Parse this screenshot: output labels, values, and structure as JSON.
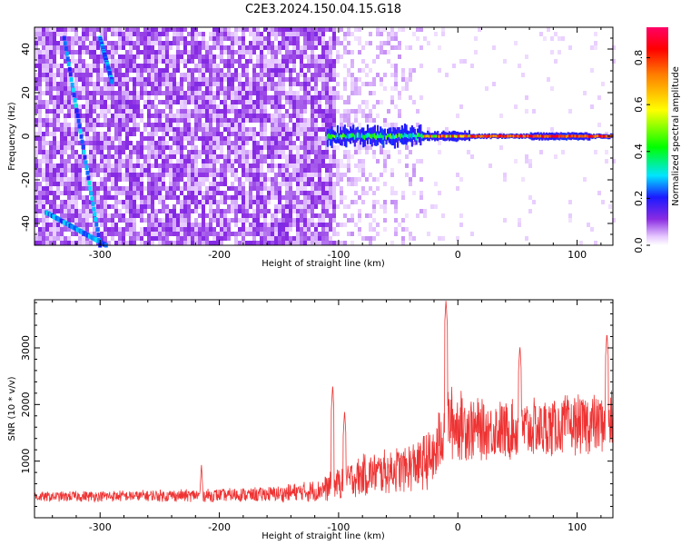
{
  "title": "C2E3.2024.150.04.15.G18",
  "colorbar": {
    "label": "Normalized spectral amplitude",
    "ticks": [
      0.0,
      0.2,
      0.4,
      0.6,
      0.8
    ],
    "tick_labels": [
      "0.0",
      "0.2",
      "0.4",
      "0.6",
      "0.8"
    ],
    "range": [
      0,
      0.93
    ]
  },
  "chart_data": [
    {
      "type": "heatmap",
      "title": "C2E3.2024.150.04.15.G18",
      "xlabel": "Height of straight line (km)",
      "ylabel": "Frequency (Hz)",
      "xlim": [
        -355,
        130
      ],
      "ylim": [
        -50,
        50
      ],
      "x_ticks": [
        -300,
        -200,
        -100,
        0,
        100
      ],
      "x_tick_labels": [
        "-300",
        "-200",
        "-100",
        "0",
        "100"
      ],
      "y_ticks": [
        -40,
        -20,
        0,
        20,
        40
      ],
      "y_tick_labels": [
        "-40",
        "-20",
        "0",
        "20",
        "40"
      ],
      "colormap": "rainbow (white→purple→blue→cyan→green→yellow→red)",
      "features": {
        "noise_region_x": [
          -355,
          -105
        ],
        "noise_amplitude": 0.1,
        "fading_noise_x": [
          -105,
          -30
        ],
        "dc_line_start_x": -110,
        "dc_line_y": 0,
        "dc_line_amplitude_range": [
          0.3,
          0.93
        ],
        "oblique_streaks": [
          {
            "x_start": -345,
            "y_start": -35,
            "x_end": -295,
            "y_end": -50
          },
          {
            "x_start": -330,
            "y_start": 45,
            "x_end": -300,
            "y_end": -50
          },
          {
            "x_start": -300,
            "y_start": 45,
            "x_end": -290,
            "y_end": 25
          }
        ]
      }
    },
    {
      "type": "line",
      "xlabel": "Height of straight line (km)",
      "ylabel": "SNR (10 * v/v)",
      "xlim": [
        -355,
        130
      ],
      "ylim": [
        0,
        3850
      ],
      "x_ticks": [
        -300,
        -200,
        -100,
        0,
        100
      ],
      "x_tick_labels": [
        "-300",
        "-200",
        "-100",
        "0",
        "100"
      ],
      "y_ticks": [
        1000,
        2000,
        3000
      ],
      "y_tick_labels": [
        "1000",
        "2000",
        "3000"
      ],
      "series": [
        {
          "color": "#ee3333",
          "envelope_x": [
            -355,
            -300,
            -250,
            -200,
            -150,
            -120,
            -100,
            -80,
            -60,
            -40,
            -20,
            -10,
            0,
            20,
            50,
            80,
            100,
            130
          ],
          "envelope_mean": [
            370,
            380,
            390,
            395,
            420,
            470,
            600,
            750,
            820,
            900,
            1050,
            1700,
            1650,
            1550,
            1550,
            1600,
            1650,
            1700
          ],
          "envelope_spread": [
            90,
            100,
            110,
            120,
            150,
            200,
            300,
            380,
            400,
            450,
            550,
            700,
            650,
            550,
            550,
            550,
            550,
            550
          ],
          "peaks": [
            {
              "x": -215,
              "y": 950
            },
            {
              "x": -105,
              "y": 2350
            },
            {
              "x": -95,
              "y": 1900
            },
            {
              "x": -10,
              "y": 3850
            },
            {
              "x": 52,
              "y": 3050
            },
            {
              "x": 125,
              "y": 3280
            }
          ]
        }
      ]
    }
  ]
}
